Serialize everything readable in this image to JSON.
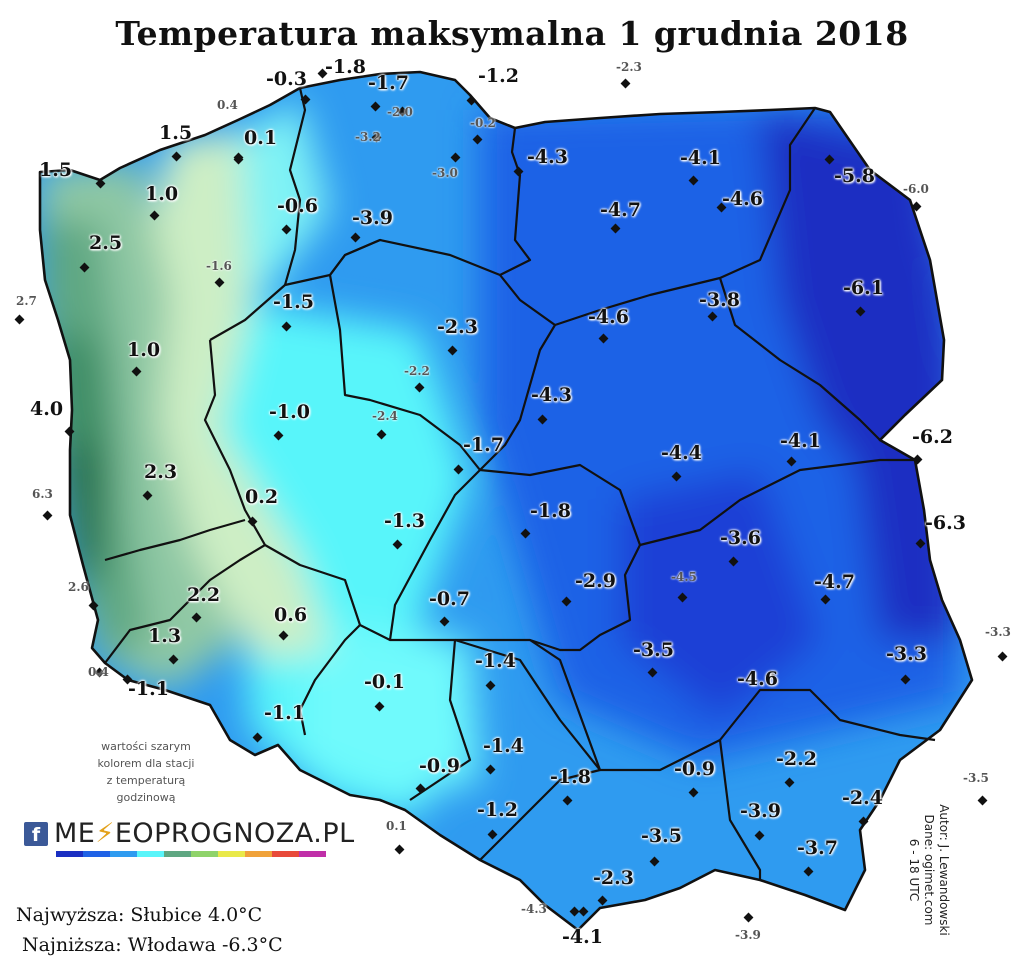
{
  "title": "Temperatura maksymalna 1 grudnia 2018",
  "legend_note": [
    "wartości szarym",
    "kolorem dla stacji",
    "z temperaturą",
    "godzinową"
  ],
  "brand": {
    "name_prefix": "ME",
    "name_suffix": "EOPROGNOZA.PL",
    "facebook_icon": "f"
  },
  "summary": {
    "highest": "Najwyższa: Słubice 4.0°C",
    "lowest": "Najniższa: Włodawa -6.3°C"
  },
  "credits": [
    "Autor: J. Lewandowski",
    "Dane: ogimet.com",
    "6 - 18 UTC"
  ],
  "colors": {
    "warm_dark": "#1f6647",
    "warm_mid": "#5fa782",
    "warm_light": "#cdeec5",
    "neutral": "#59f5fa",
    "cool": "#2f9bf0",
    "cold": "#1f62e6",
    "coldest": "#1a2fc2",
    "borders": "#111111"
  },
  "stations": [
    {
      "value": "-0.3",
      "hourly": false
    },
    {
      "value": "-1.8",
      "hourly": false
    },
    {
      "value": "-1.7",
      "hourly": false
    },
    {
      "value": "-1.2",
      "hourly": false
    },
    {
      "value": "-2.3",
      "hourly": true
    },
    {
      "value": "0.4",
      "hourly": true
    },
    {
      "value": "-2.0",
      "hourly": true
    },
    {
      "value": "-0.2",
      "hourly": true
    },
    {
      "value": "-3.2",
      "hourly": true
    },
    {
      "value": "1.5",
      "hourly": false
    },
    {
      "value": "0.1",
      "hourly": false
    },
    {
      "value": "-4.3",
      "hourly": false
    },
    {
      "value": "-4.1",
      "hourly": false
    },
    {
      "value": "-3.0",
      "hourly": true
    },
    {
      "value": "-5.8",
      "hourly": false
    },
    {
      "value": "1.5",
      "hourly": false
    },
    {
      "value": "1.0",
      "hourly": false
    },
    {
      "value": "-0.6",
      "hourly": false
    },
    {
      "value": "-4.7",
      "hourly": false
    },
    {
      "value": "-4.6",
      "hourly": false
    },
    {
      "value": "-6.0",
      "hourly": true
    },
    {
      "value": "-3.9",
      "hourly": false
    },
    {
      "value": "2.5",
      "hourly": false
    },
    {
      "value": "-1.6",
      "hourly": true
    },
    {
      "value": "-6.1",
      "hourly": false
    },
    {
      "value": "2.7",
      "hourly": true
    },
    {
      "value": "-1.5",
      "hourly": false
    },
    {
      "value": "-4.6",
      "hourly": false
    },
    {
      "value": "-3.8",
      "hourly": false
    },
    {
      "value": "-2.3",
      "hourly": false
    },
    {
      "value": "1.0",
      "hourly": false
    },
    {
      "value": "-2.2",
      "hourly": true
    },
    {
      "value": "4.0",
      "hourly": false
    },
    {
      "value": "-4.3",
      "hourly": false
    },
    {
      "value": "-1.0",
      "hourly": false
    },
    {
      "value": "-2.4",
      "hourly": true
    },
    {
      "value": "-6.2",
      "hourly": false
    },
    {
      "value": "-1.7",
      "hourly": false
    },
    {
      "value": "-4.1",
      "hourly": false
    },
    {
      "value": "-4.4",
      "hourly": false
    },
    {
      "value": "2.3",
      "hourly": false
    },
    {
      "value": "6.3",
      "hourly": true
    },
    {
      "value": "0.2",
      "hourly": false
    },
    {
      "value": "-1.8",
      "hourly": false
    },
    {
      "value": "-1.3",
      "hourly": false
    },
    {
      "value": "-6.3",
      "hourly": false
    },
    {
      "value": "-3.6",
      "hourly": false
    },
    {
      "value": "-4.5",
      "hourly": true
    },
    {
      "value": "-2.9",
      "hourly": false
    },
    {
      "value": "-4.7",
      "hourly": false
    },
    {
      "value": "2.6",
      "hourly": true
    },
    {
      "value": "2.2",
      "hourly": false
    },
    {
      "value": "-0.7",
      "hourly": false
    },
    {
      "value": "0.6",
      "hourly": false
    },
    {
      "value": "-3.3",
      "hourly": true
    },
    {
      "value": "1.3",
      "hourly": false
    },
    {
      "value": "-3.5",
      "hourly": false
    },
    {
      "value": "-1.4",
      "hourly": false
    },
    {
      "value": "-3.3",
      "hourly": false
    },
    {
      "value": "0.4",
      "hourly": true
    },
    {
      "value": "-1.1",
      "hourly": false
    },
    {
      "value": "-0.1",
      "hourly": false
    },
    {
      "value": "-4.6",
      "hourly": false
    },
    {
      "value": "-1.1",
      "hourly": false
    },
    {
      "value": "-1.4",
      "hourly": false
    },
    {
      "value": "-2.2",
      "hourly": false
    },
    {
      "value": "-0.9",
      "hourly": false
    },
    {
      "value": "-1.8",
      "hourly": false
    },
    {
      "value": "-0.9",
      "hourly": false
    },
    {
      "value": "-3.5",
      "hourly": true
    },
    {
      "value": "-2.4",
      "hourly": false
    },
    {
      "value": "-1.2",
      "hourly": false
    },
    {
      "value": "-3.9",
      "hourly": false
    },
    {
      "value": "0.1",
      "hourly": true
    },
    {
      "value": "-3.5",
      "hourly": false
    },
    {
      "value": "-3.7",
      "hourly": false
    },
    {
      "value": "-2.3",
      "hourly": false
    },
    {
      "value": "-4.3",
      "hourly": true
    },
    {
      "value": "-4.1",
      "hourly": false
    },
    {
      "value": "-3.9",
      "hourly": true
    }
  ]
}
